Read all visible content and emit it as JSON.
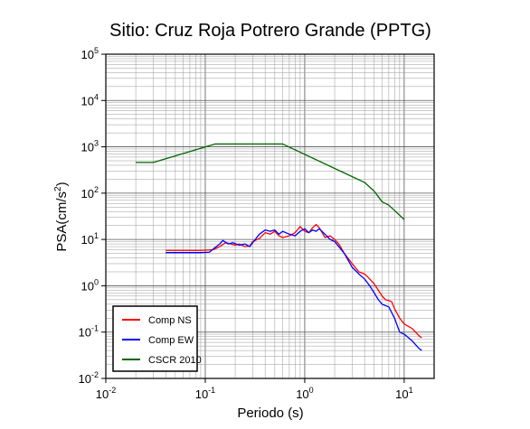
{
  "chart_data": {
    "type": "line",
    "title": "Sitio: Cruz Roja Potrero Grande (PPTG)",
    "xlabel": "Periodo (s)",
    "ylabel": "PSA(cm/s2)",
    "ylabel_base": "PSA(cm/s",
    "ylabel_sup": "2",
    "ylabel_tail": ")",
    "xscale": "log",
    "yscale": "log",
    "xlim": [
      0.01,
      20
    ],
    "ylim": [
      0.01,
      100000
    ],
    "grid": true,
    "legend_position": "bottom-left",
    "x_ticks": [
      {
        "value": 0.01,
        "base": "10",
        "exp": "-2"
      },
      {
        "value": 0.1,
        "base": "10",
        "exp": "-1"
      },
      {
        "value": 1,
        "base": "10",
        "exp": "0"
      },
      {
        "value": 10,
        "base": "10",
        "exp": "1"
      }
    ],
    "y_ticks": [
      {
        "value": 0.01,
        "base": "10",
        "exp": "-2"
      },
      {
        "value": 0.1,
        "base": "10",
        "exp": "-1"
      },
      {
        "value": 1,
        "base": "10",
        "exp": "0"
      },
      {
        "value": 10,
        "base": "10",
        "exp": "1"
      },
      {
        "value": 100,
        "base": "10",
        "exp": "2"
      },
      {
        "value": 1000,
        "base": "10",
        "exp": "3"
      },
      {
        "value": 10000,
        "base": "10",
        "exp": "4"
      },
      {
        "value": 100000,
        "base": "10",
        "exp": "5"
      }
    ],
    "series": [
      {
        "name": "Comp NS",
        "color": "#ff0000",
        "points": [
          [
            0.04,
            5.8
          ],
          [
            0.06,
            5.8
          ],
          [
            0.09,
            5.8
          ],
          [
            0.12,
            6.0
          ],
          [
            0.14,
            7.0
          ],
          [
            0.16,
            8.5
          ],
          [
            0.18,
            8.0
          ],
          [
            0.2,
            7.5
          ],
          [
            0.22,
            8.0
          ],
          [
            0.25,
            7.0
          ],
          [
            0.28,
            7.2
          ],
          [
            0.3,
            9.0
          ],
          [
            0.35,
            10.5
          ],
          [
            0.4,
            14.0
          ],
          [
            0.45,
            13.0
          ],
          [
            0.5,
            15.0
          ],
          [
            0.55,
            12.0
          ],
          [
            0.6,
            11.0
          ],
          [
            0.7,
            12.0
          ],
          [
            0.8,
            14.0
          ],
          [
            0.9,
            19.0
          ],
          [
            1.0,
            15.0
          ],
          [
            1.1,
            14.0
          ],
          [
            1.2,
            18.0
          ],
          [
            1.3,
            21.0
          ],
          [
            1.4,
            18.0
          ],
          [
            1.6,
            11.0
          ],
          [
            1.8,
            12.0
          ],
          [
            2.0,
            10.0
          ],
          [
            2.2,
            8.0
          ],
          [
            2.5,
            5.0
          ],
          [
            3.0,
            3.0
          ],
          [
            3.5,
            2.0
          ],
          [
            4.0,
            1.8
          ],
          [
            4.5,
            1.4
          ],
          [
            5.0,
            1.1
          ],
          [
            5.5,
            0.8
          ],
          [
            6.0,
            0.6
          ],
          [
            6.5,
            0.5
          ],
          [
            7.0,
            0.48
          ],
          [
            7.5,
            0.45
          ],
          [
            8.0,
            0.32
          ],
          [
            9.0,
            0.2
          ],
          [
            10.0,
            0.15
          ],
          [
            12.0,
            0.12
          ],
          [
            14.0,
            0.085
          ],
          [
            15.0,
            0.075
          ]
        ]
      },
      {
        "name": "Comp EW",
        "color": "#0000ff",
        "points": [
          [
            0.04,
            5.2
          ],
          [
            0.06,
            5.2
          ],
          [
            0.09,
            5.2
          ],
          [
            0.11,
            5.3
          ],
          [
            0.12,
            6.2
          ],
          [
            0.14,
            8.0
          ],
          [
            0.15,
            9.5
          ],
          [
            0.17,
            8.0
          ],
          [
            0.19,
            8.5
          ],
          [
            0.22,
            7.5
          ],
          [
            0.25,
            8.0
          ],
          [
            0.28,
            7.0
          ],
          [
            0.3,
            8.5
          ],
          [
            0.35,
            13.0
          ],
          [
            0.4,
            16.0
          ],
          [
            0.45,
            15.0
          ],
          [
            0.5,
            16.0
          ],
          [
            0.55,
            13.0
          ],
          [
            0.6,
            15.0
          ],
          [
            0.7,
            13.0
          ],
          [
            0.8,
            12.0
          ],
          [
            0.9,
            15.0
          ],
          [
            1.0,
            17.0
          ],
          [
            1.1,
            14.0
          ],
          [
            1.2,
            16.0
          ],
          [
            1.3,
            15.0
          ],
          [
            1.4,
            17.0
          ],
          [
            1.6,
            13.0
          ],
          [
            1.8,
            10.0
          ],
          [
            2.0,
            9.0
          ],
          [
            2.2,
            7.0
          ],
          [
            2.5,
            5.0
          ],
          [
            3.0,
            2.5
          ],
          [
            3.5,
            1.8
          ],
          [
            4.0,
            1.4
          ],
          [
            4.5,
            1.0
          ],
          [
            5.0,
            0.7
          ],
          [
            5.5,
            0.5
          ],
          [
            6.0,
            0.4
          ],
          [
            7.0,
            0.35
          ],
          [
            8.0,
            0.2
          ],
          [
            9.0,
            0.1
          ],
          [
            10.0,
            0.09
          ],
          [
            12.0,
            0.065
          ],
          [
            14.0,
            0.045
          ],
          [
            15.0,
            0.04
          ]
        ]
      },
      {
        "name": "CSCR 2010",
        "color": "#006600",
        "points": [
          [
            0.02,
            460
          ],
          [
            0.03,
            460
          ],
          [
            0.125,
            1150
          ],
          [
            0.6,
            1150
          ],
          [
            4.0,
            170
          ],
          [
            5.0,
            110
          ],
          [
            6.0,
            65
          ],
          [
            7.0,
            55
          ],
          [
            10.0,
            27
          ]
        ]
      }
    ]
  }
}
